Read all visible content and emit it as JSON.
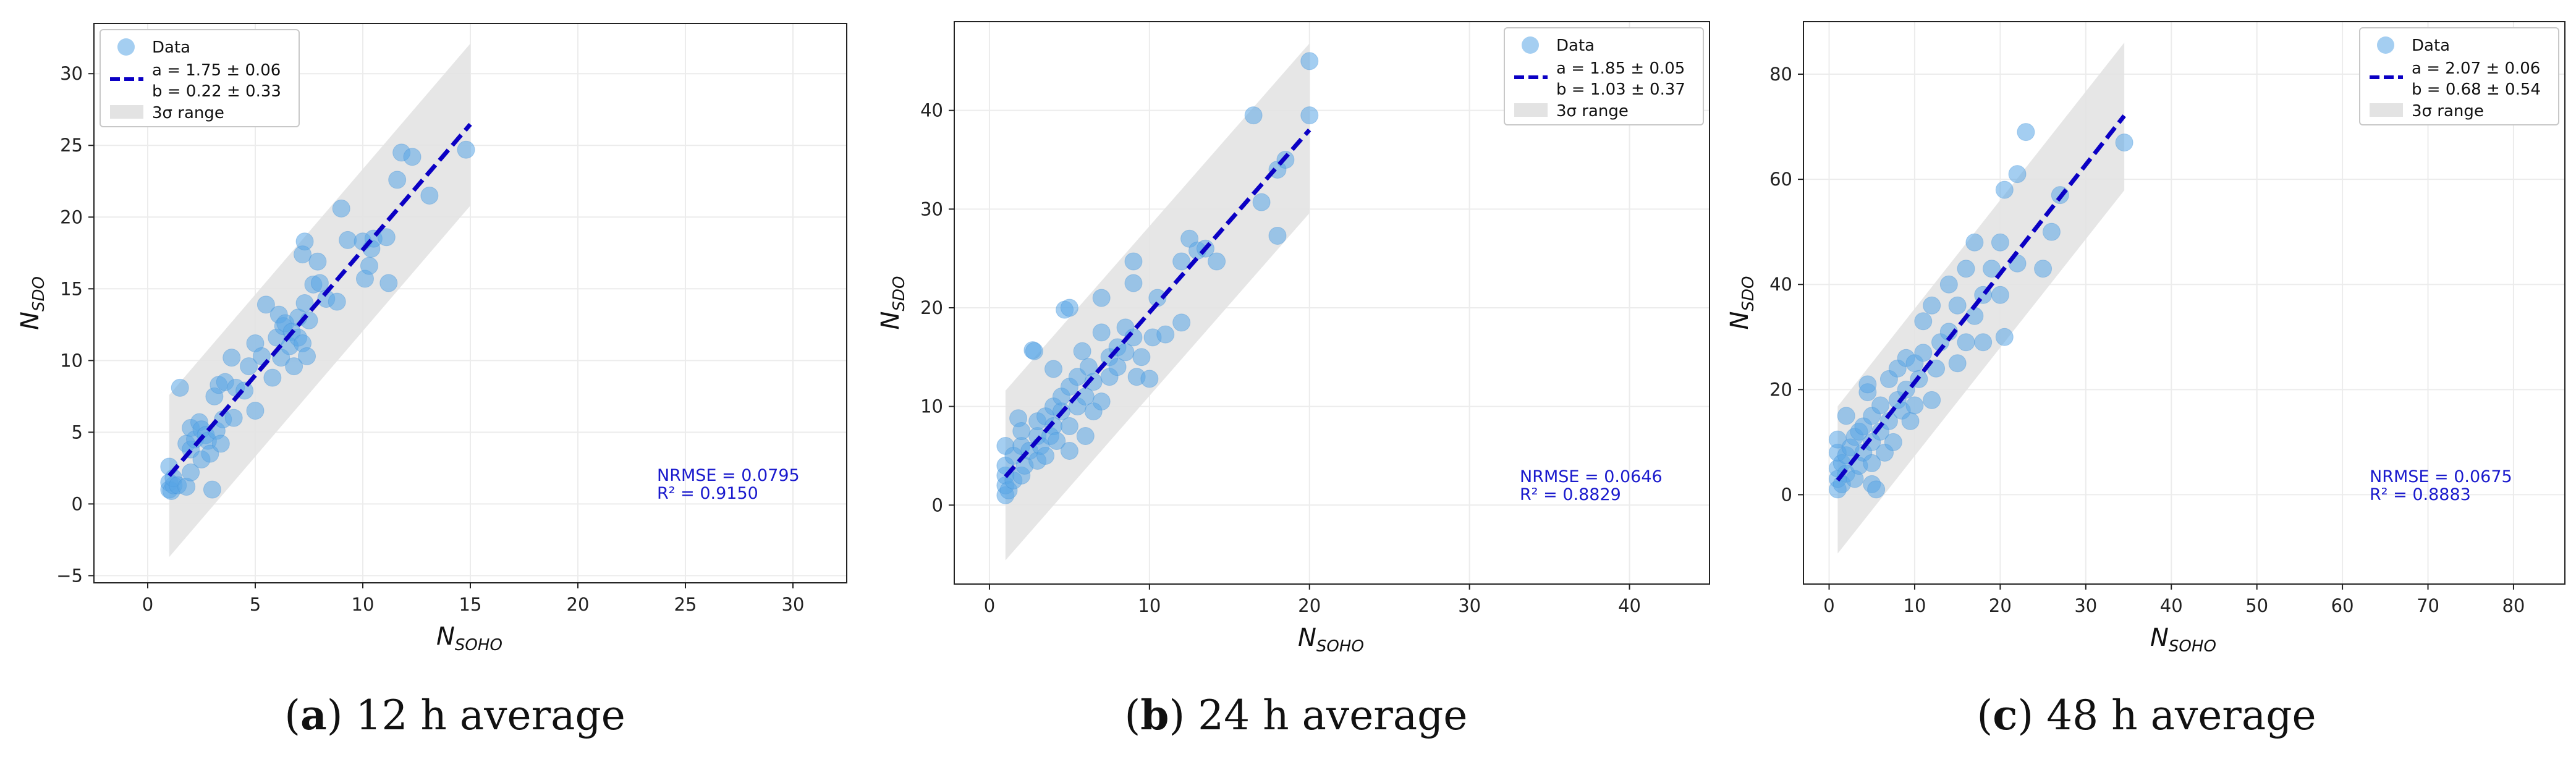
{
  "figure": {
    "colors": {
      "point": "#5aa6e6",
      "fit": "#0b00c4",
      "band": "#e3e3e3",
      "stats": "#1a1acd"
    }
  },
  "chart_data": [
    {
      "type": "scatter",
      "label_letter": "a",
      "caption_rest": ") 12 h average",
      "xlabel": "N",
      "xlabel_sub": "SOHO",
      "ylabel": "N",
      "ylabel_sub": "SDO",
      "xlim": [
        -2.5,
        32.5
      ],
      "ylim": [
        -5.5,
        33.5
      ],
      "xticks": [
        0,
        5,
        10,
        15,
        20,
        25,
        30
      ],
      "yticks": [
        -5,
        0,
        5,
        10,
        15,
        20,
        25,
        30
      ],
      "tick_labels_x": [
        "0",
        "5",
        "10",
        "15",
        "20",
        "25",
        "30"
      ],
      "tick_labels_y": [
        "−5",
        "0",
        "5",
        "10",
        "15",
        "20",
        "25",
        "30"
      ],
      "grid": true,
      "legend_position": "top-left",
      "legend": {
        "data": "Data",
        "fit_a": "a = 1.75 ± 0.06",
        "fit_b": "b = 0.22 ± 0.33",
        "band": "3σ range"
      },
      "fit": {
        "slope": 1.75,
        "intercept": 0.22,
        "x_range": [
          1,
          15
        ]
      },
      "band": {
        "low_at_start": -3.7,
        "high_at_start": 7.6,
        "low_at_end": 20.8,
        "high_at_end": 32.1
      },
      "nrmse": "NRMSE = 0.0795",
      "r2": "R² = 0.9150",
      "points": [
        [
          1,
          1
        ],
        [
          1,
          1.5
        ],
        [
          1,
          2.6
        ],
        [
          1.1,
          0.9
        ],
        [
          1.2,
          1.3
        ],
        [
          1.2,
          1.8
        ],
        [
          1.5,
          8.1
        ],
        [
          1.4,
          1.3
        ],
        [
          1.8,
          1.2
        ],
        [
          1.8,
          4.2
        ],
        [
          2,
          5.3
        ],
        [
          2,
          3.8
        ],
        [
          2,
          2.2
        ],
        [
          2.2,
          4.5
        ],
        [
          2.4,
          5.7
        ],
        [
          2.5,
          5.2
        ],
        [
          2.5,
          3.1
        ],
        [
          2.7,
          4.8
        ],
        [
          2.8,
          4.4
        ],
        [
          2.9,
          3.5
        ],
        [
          3,
          1
        ],
        [
          3.1,
          7.5
        ],
        [
          3.2,
          5.1
        ],
        [
          3.3,
          8.3
        ],
        [
          3.4,
          4.2
        ],
        [
          3.5,
          5.9
        ],
        [
          3.6,
          8.5
        ],
        [
          3.9,
          10.2
        ],
        [
          4,
          6
        ],
        [
          4.1,
          8.1
        ],
        [
          4.5,
          7.9
        ],
        [
          4.7,
          9.6
        ],
        [
          5,
          11.2
        ],
        [
          5,
          6.5
        ],
        [
          5.3,
          10.3
        ],
        [
          5.5,
          13.9
        ],
        [
          5.8,
          8.8
        ],
        [
          6,
          11.6
        ],
        [
          6.1,
          13.2
        ],
        [
          6.2,
          10.2
        ],
        [
          6.3,
          12.4
        ],
        [
          6.4,
          12.6
        ],
        [
          6.6,
          11
        ],
        [
          6.7,
          12
        ],
        [
          6.8,
          9.6
        ],
        [
          7,
          13
        ],
        [
          7,
          11.6
        ],
        [
          7.2,
          11.2
        ],
        [
          7.2,
          17.4
        ],
        [
          7.3,
          18.3
        ],
        [
          7.3,
          14
        ],
        [
          7.4,
          10.3
        ],
        [
          7.5,
          12.8
        ],
        [
          7.7,
          15.3
        ],
        [
          7.9,
          16.9
        ],
        [
          8,
          15.4
        ],
        [
          8.3,
          14.3
        ],
        [
          8.8,
          14.1
        ],
        [
          9,
          20.6
        ],
        [
          9.3,
          18.4
        ],
        [
          10,
          18.3
        ],
        [
          10.1,
          15.7
        ],
        [
          10.3,
          16.6
        ],
        [
          10.4,
          17.8
        ],
        [
          10.5,
          18.5
        ],
        [
          11.1,
          18.6
        ],
        [
          11.2,
          15.4
        ],
        [
          11.6,
          22.6
        ],
        [
          11.8,
          24.5
        ],
        [
          12.3,
          24.2
        ],
        [
          13.1,
          21.5
        ],
        [
          14.8,
          24.7
        ]
      ]
    },
    {
      "type": "scatter",
      "label_letter": "b",
      "caption_rest": ") 24 h average",
      "xlabel": "N",
      "xlabel_sub": "SOHO",
      "ylabel": "N",
      "ylabel_sub": "SDO",
      "xlim": [
        -2.2,
        45
      ],
      "ylim": [
        -8,
        49
      ],
      "xticks": [
        0,
        10,
        20,
        30,
        40
      ],
      "yticks": [
        0,
        10,
        20,
        30,
        40
      ],
      "tick_labels_x": [
        "0",
        "10",
        "20",
        "30",
        "40"
      ],
      "tick_labels_y": [
        "0",
        "10",
        "20",
        "30",
        "40"
      ],
      "grid": true,
      "legend_position": "top-right",
      "legend": {
        "data": "Data",
        "fit_a": "a = 1.85 ± 0.05",
        "fit_b": "b = 1.03 ± 0.37",
        "band": "3σ range"
      },
      "fit": {
        "slope": 1.85,
        "intercept": 1.03,
        "x_range": [
          1,
          20
        ]
      },
      "band": {
        "low_at_start": -5.6,
        "high_at_start": 11.6,
        "low_at_end": 29.6,
        "high_at_end": 46.8
      },
      "nrmse": "NRMSE = 0.0646",
      "r2": "R² = 0.8829",
      "points": [
        [
          1,
          1
        ],
        [
          1,
          2
        ],
        [
          1,
          3
        ],
        [
          1,
          4
        ],
        [
          1,
          6
        ],
        [
          1.2,
          1.5
        ],
        [
          1.5,
          2.5
        ],
        [
          1.5,
          5
        ],
        [
          1.8,
          8.8
        ],
        [
          2,
          3
        ],
        [
          2,
          6
        ],
        [
          2,
          7.5
        ],
        [
          2.2,
          4
        ],
        [
          2.5,
          5.5
        ],
        [
          2.7,
          15.7
        ],
        [
          2.8,
          15.6
        ],
        [
          3,
          4.5
        ],
        [
          3,
          7
        ],
        [
          3,
          8.5
        ],
        [
          3.2,
          6
        ],
        [
          3.5,
          5
        ],
        [
          3.5,
          9
        ],
        [
          3.8,
          7
        ],
        [
          4,
          8
        ],
        [
          4,
          10
        ],
        [
          4,
          13.8
        ],
        [
          4.2,
          6.5
        ],
        [
          4.5,
          9.5
        ],
        [
          4.5,
          11
        ],
        [
          4.7,
          19.8
        ],
        [
          5,
          20
        ],
        [
          5,
          8
        ],
        [
          5,
          12
        ],
        [
          5,
          5.5
        ],
        [
          5.5,
          10
        ],
        [
          5.5,
          13
        ],
        [
          5.8,
          15.6
        ],
        [
          6,
          7
        ],
        [
          6,
          11
        ],
        [
          6.2,
          14
        ],
        [
          6.5,
          9.5
        ],
        [
          6.5,
          12.5
        ],
        [
          7,
          10.5
        ],
        [
          7,
          17.5
        ],
        [
          7,
          21
        ],
        [
          7.5,
          13
        ],
        [
          7.5,
          15
        ],
        [
          8,
          16
        ],
        [
          8,
          14
        ],
        [
          8.5,
          18
        ],
        [
          8.5,
          15.5
        ],
        [
          9,
          24.7
        ],
        [
          9,
          17
        ],
        [
          9,
          22.5
        ],
        [
          9.2,
          13
        ],
        [
          9.5,
          15
        ],
        [
          10,
          12.8
        ],
        [
          10.2,
          17
        ],
        [
          10.5,
          21
        ],
        [
          11,
          17.3
        ],
        [
          12,
          24.7
        ],
        [
          12,
          18.5
        ],
        [
          12.5,
          27
        ],
        [
          13,
          25.8
        ],
        [
          13.5,
          26
        ],
        [
          14.2,
          24.7
        ],
        [
          16.5,
          39.5
        ],
        [
          17,
          30.7
        ],
        [
          18,
          34
        ],
        [
          18,
          27.3
        ],
        [
          18.5,
          35
        ],
        [
          20,
          45
        ],
        [
          20,
          39.5
        ]
      ]
    },
    {
      "type": "scatter",
      "label_letter": "c",
      "caption_rest": ") 48 h average",
      "xlabel": "N",
      "xlabel_sub": "SOHO",
      "ylabel": "N",
      "ylabel_sub": "SDO",
      "xlim": [
        -3,
        86
      ],
      "ylim": [
        -17,
        90
      ],
      "xticks": [
        0,
        10,
        20,
        30,
        40,
        50,
        60,
        70,
        80
      ],
      "yticks": [
        0,
        20,
        40,
        60,
        80
      ],
      "tick_labels_x": [
        "0",
        "10",
        "20",
        "30",
        "40",
        "50",
        "60",
        "70",
        "80"
      ],
      "tick_labels_y": [
        "0",
        "20",
        "40",
        "60",
        "80"
      ],
      "grid": true,
      "legend_position": "top-right",
      "legend": {
        "data": "Data",
        "fit_a": "a = 2.07 ± 0.06",
        "fit_b": "b = 0.68 ± 0.54",
        "band": "3σ range"
      },
      "fit": {
        "slope": 2.07,
        "intercept": 0.68,
        "x_range": [
          1,
          34.5
        ]
      },
      "band": {
        "low_at_start": -11.2,
        "high_at_start": 16.8,
        "low_at_end": 57.9,
        "high_at_end": 86
      },
      "nrmse": "NRMSE = 0.0675",
      "r2": "R² = 0.8883",
      "points": [
        [
          1,
          1
        ],
        [
          1,
          3
        ],
        [
          1,
          5
        ],
        [
          1,
          8
        ],
        [
          1,
          10.5
        ],
        [
          1.5,
          2
        ],
        [
          1.5,
          6
        ],
        [
          2,
          4
        ],
        [
          2,
          7.5
        ],
        [
          2,
          15
        ],
        [
          2.5,
          9
        ],
        [
          3,
          3
        ],
        [
          3,
          11
        ],
        [
          3.5,
          5.5
        ],
        [
          3.5,
          12
        ],
        [
          4,
          8
        ],
        [
          4,
          13
        ],
        [
          4.5,
          19.5
        ],
        [
          4.5,
          21
        ],
        [
          5,
          2
        ],
        [
          5,
          6
        ],
        [
          5,
          10
        ],
        [
          5,
          15
        ],
        [
          5.5,
          1
        ],
        [
          6,
          12
        ],
        [
          6,
          17
        ],
        [
          6.5,
          8
        ],
        [
          7,
          14
        ],
        [
          7,
          22
        ],
        [
          7.5,
          10
        ],
        [
          8,
          18
        ],
        [
          8,
          24
        ],
        [
          8.5,
          16
        ],
        [
          9,
          20
        ],
        [
          9,
          26
        ],
        [
          9.5,
          14
        ],
        [
          10,
          17
        ],
        [
          10,
          25
        ],
        [
          10.5,
          22
        ],
        [
          11,
          33
        ],
        [
          11,
          27
        ],
        [
          12,
          18
        ],
        [
          12,
          36
        ],
        [
          12.5,
          24
        ],
        [
          13,
          29
        ],
        [
          14,
          40
        ],
        [
          14,
          31
        ],
        [
          15,
          25
        ],
        [
          15,
          36
        ],
        [
          16,
          43
        ],
        [
          16,
          29
        ],
        [
          17,
          34
        ],
        [
          17,
          48
        ],
        [
          18,
          38
        ],
        [
          18,
          29
        ],
        [
          19,
          43
        ],
        [
          20,
          48
        ],
        [
          20,
          38
        ],
        [
          20.5,
          30
        ],
        [
          20.5,
          58
        ],
        [
          22,
          44
        ],
        [
          22,
          61
        ],
        [
          23,
          69
        ],
        [
          25,
          43
        ],
        [
          26,
          50
        ],
        [
          27,
          57
        ],
        [
          34.5,
          67
        ]
      ]
    }
  ]
}
